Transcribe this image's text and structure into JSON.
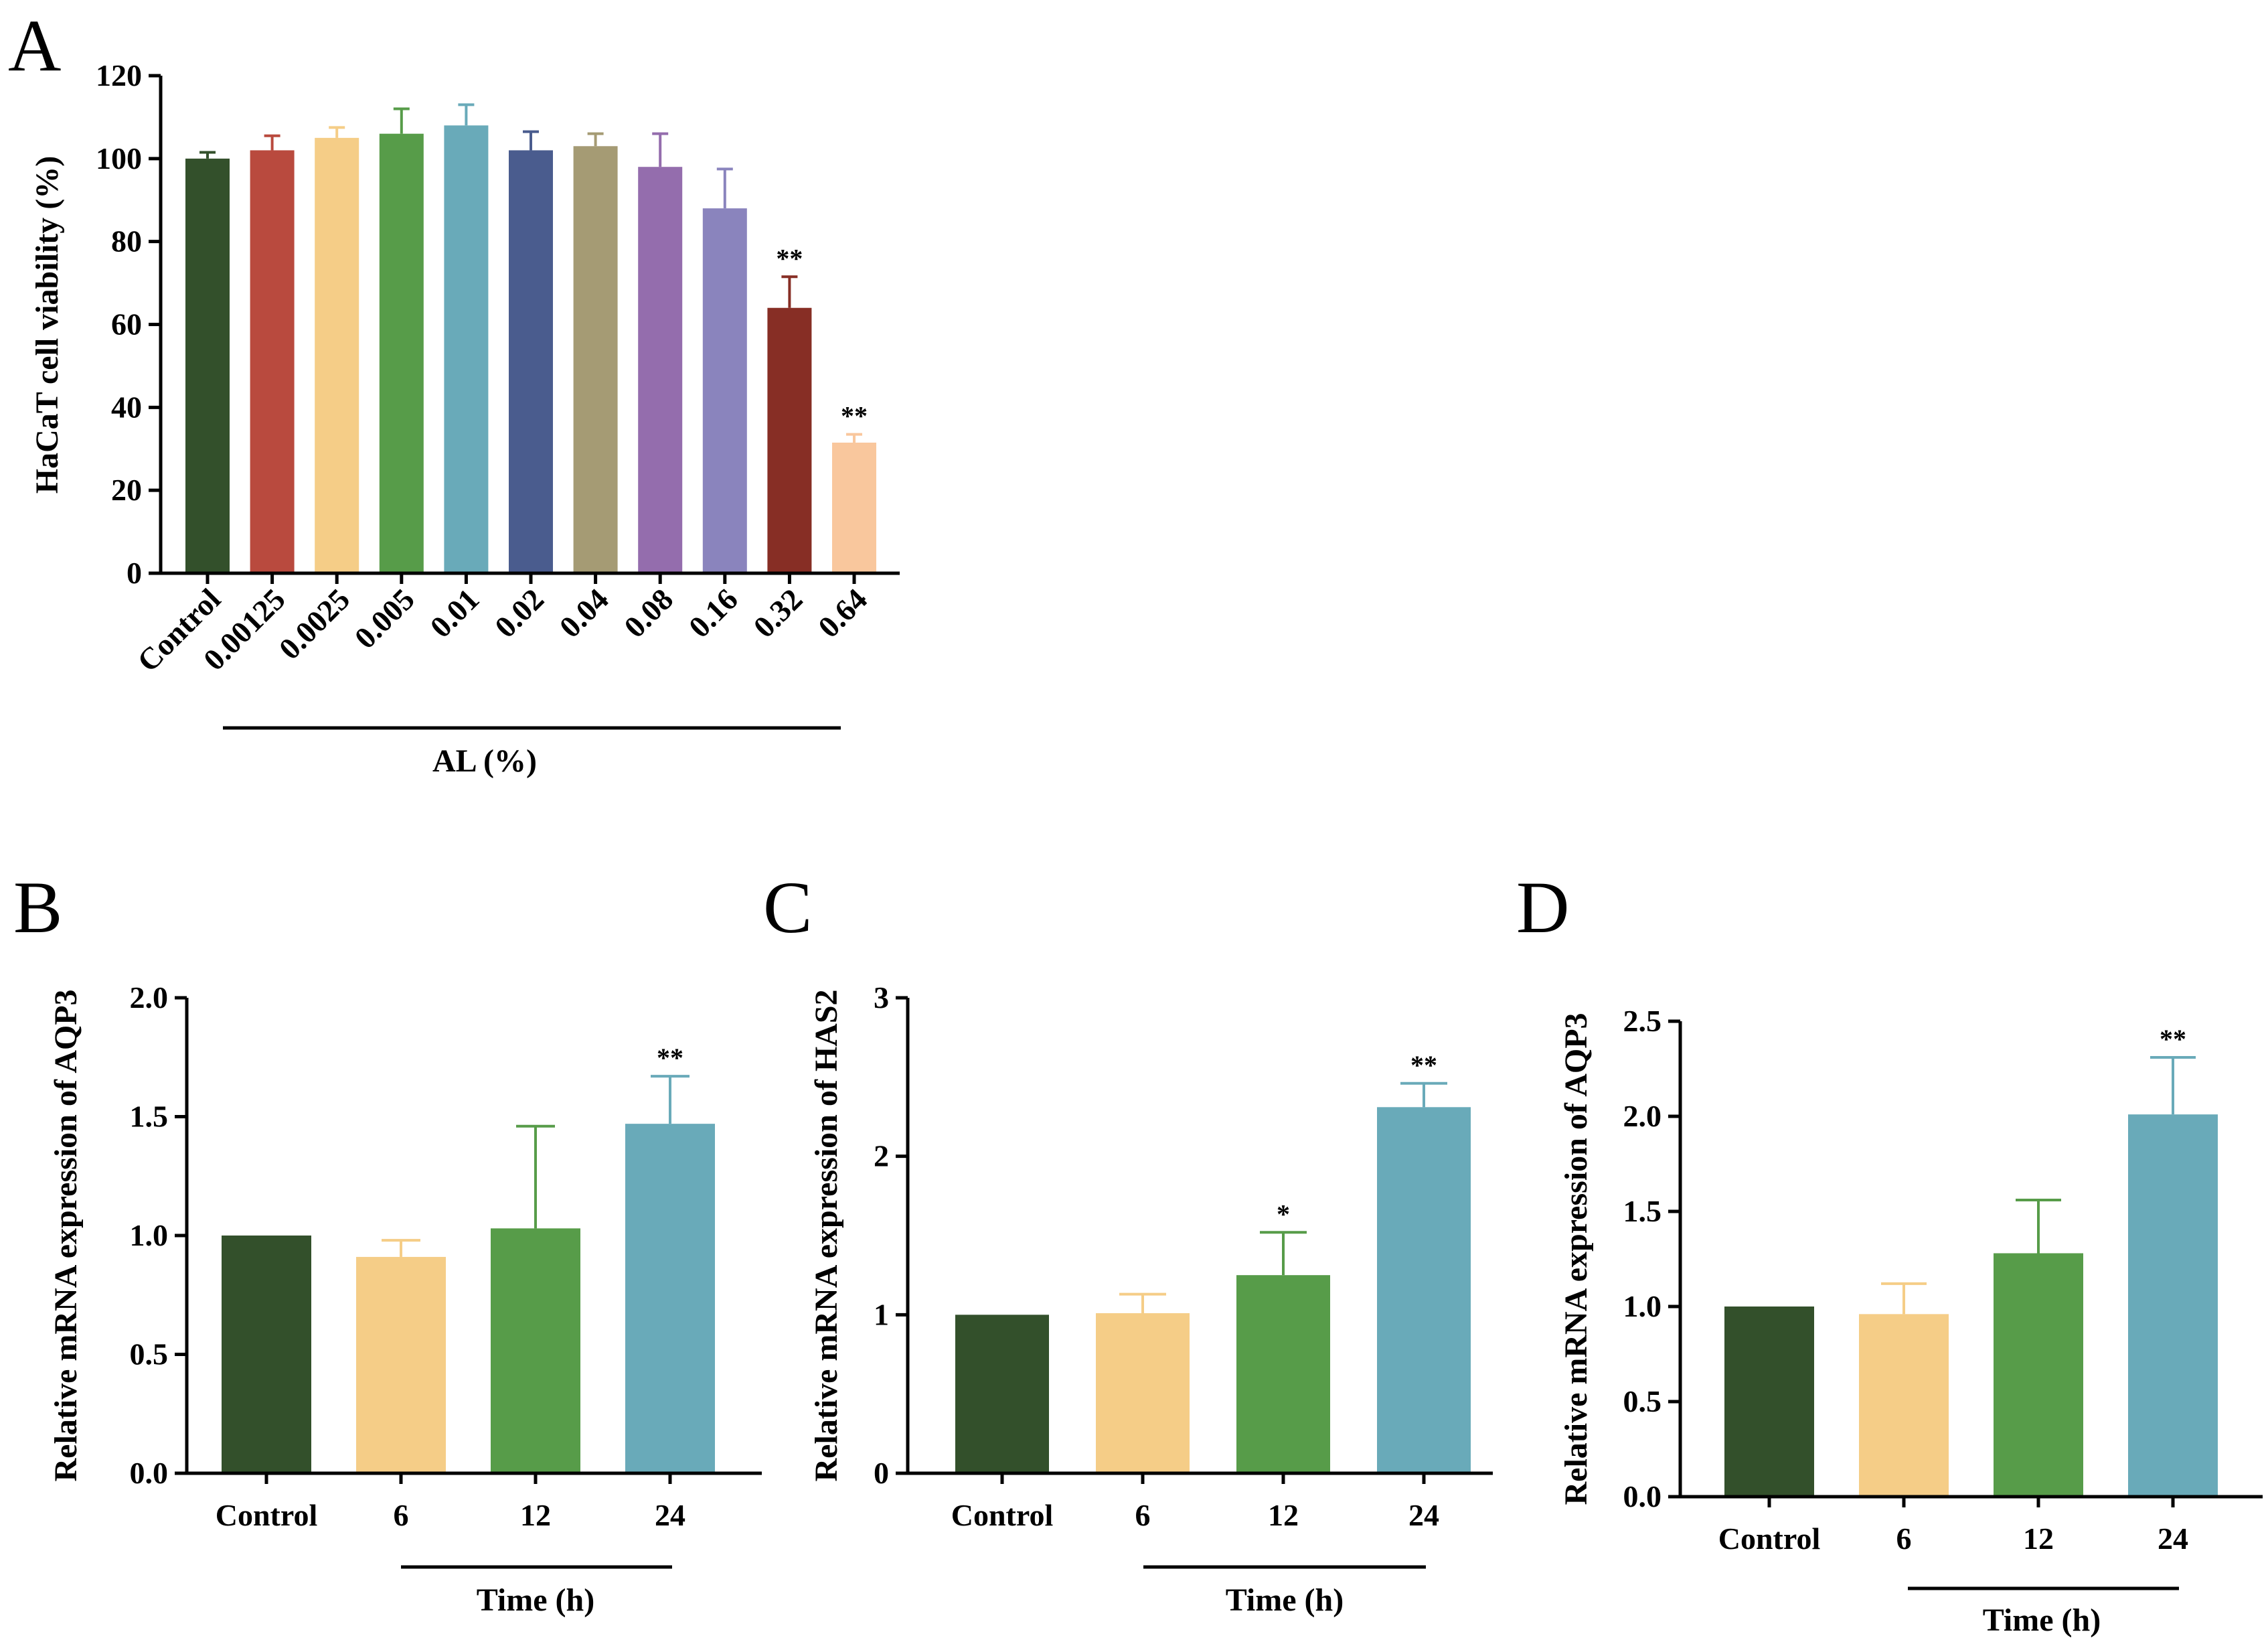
{
  "figure": {
    "panels": [
      "A",
      "B",
      "C",
      "D"
    ]
  },
  "chart_data": [
    {
      "id": "A",
      "type": "bar",
      "ylabel": "HaCaT cell viability  (%)",
      "xgroup_label": "AL (%)",
      "categories": [
        "Control",
        "0.00125",
        "0.0025",
        "0.005",
        "0.01",
        "0.02",
        "0.04",
        "0.08",
        "0.16",
        "0.32",
        "0.64"
      ],
      "values": [
        100,
        102,
        105,
        106,
        108,
        102,
        103,
        98,
        88,
        64,
        31.5
      ],
      "errors": [
        1.5,
        3.5,
        2.5,
        6,
        5,
        4.5,
        3,
        8,
        9.5,
        7.5,
        2
      ],
      "annotations": [
        "",
        "",
        "",
        "",
        "",
        "",
        "",
        "",
        "",
        "**",
        "**"
      ],
      "colors": [
        "#33502B",
        "#B94A3E",
        "#F5CD87",
        "#579C49",
        "#69AAB9",
        "#4A5C8E",
        "#A59B74",
        "#946DAD",
        "#8A84BD",
        "#872E25",
        "#F9C79D"
      ],
      "ylim": [
        0,
        120
      ],
      "yticks": [
        "0",
        "20",
        "40",
        "60",
        "80",
        "100",
        "120"
      ],
      "grouped_from_index": 1
    },
    {
      "id": "B",
      "type": "bar",
      "ylabel": "Relative mRNA expression of AQP3",
      "xgroup_label": "Time (h)",
      "categories": [
        "Control",
        "6",
        "12",
        "24"
      ],
      "values": [
        1.0,
        0.91,
        1.03,
        1.47
      ],
      "errors": [
        0,
        0.07,
        0.43,
        0.2
      ],
      "annotations": [
        "",
        "",
        "",
        "**"
      ],
      "colors": [
        "#33502B",
        "#F5CD87",
        "#579C49",
        "#69AAB9"
      ],
      "ylim": [
        0,
        2.0
      ],
      "yticks": [
        "0.0",
        "0.5",
        "1.0",
        "1.5",
        "2.0"
      ],
      "grouped_from_index": 1
    },
    {
      "id": "C",
      "type": "bar",
      "ylabel": "Relative mRNA expression of HAS2",
      "xgroup_label": "Time (h)",
      "categories": [
        "Control",
        "6",
        "12",
        "24"
      ],
      "values": [
        1.0,
        1.01,
        1.25,
        2.31
      ],
      "errors": [
        0,
        0.12,
        0.27,
        0.15
      ],
      "annotations": [
        "",
        "",
        "*",
        "**"
      ],
      "colors": [
        "#33502B",
        "#F5CD87",
        "#579C49",
        "#69AAB9"
      ],
      "ylim": [
        0,
        3
      ],
      "yticks": [
        "0",
        "1",
        "2",
        "3"
      ],
      "grouped_from_index": 1
    },
    {
      "id": "D",
      "type": "bar",
      "ylabel": "Relative mRNA expression of AQP3",
      "xgroup_label": "Time (h)",
      "categories": [
        "Control",
        "6",
        "12",
        "24"
      ],
      "values": [
        1.0,
        0.96,
        1.28,
        2.01
      ],
      "errors": [
        0,
        0.16,
        0.28,
        0.3
      ],
      "annotations": [
        "",
        "",
        "",
        "**"
      ],
      "colors": [
        "#33502B",
        "#F5CD87",
        "#579C49",
        "#69AAB9"
      ],
      "ylim": [
        0,
        2.5
      ],
      "yticks": [
        "0.0",
        "0.5",
        "1.0",
        "1.5",
        "2.0",
        "2.5"
      ],
      "grouped_from_index": 1
    }
  ]
}
